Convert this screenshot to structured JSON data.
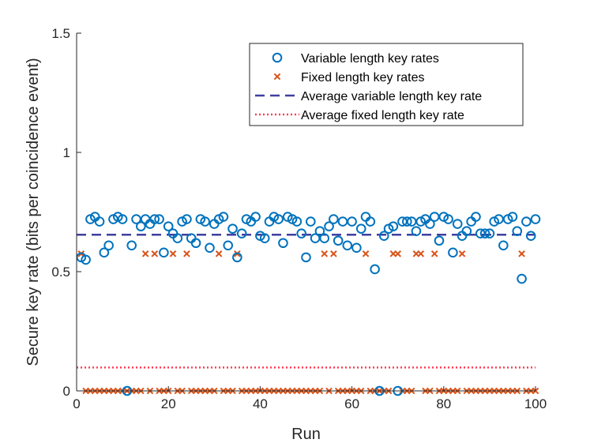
{
  "chart_data": {
    "type": "scatter",
    "xlabel": "Run",
    "ylabel": "Secure key rate (bits per coincidence event)",
    "xlim": [
      0,
      100
    ],
    "ylim": [
      0,
      1.5
    ],
    "xticks": [
      0,
      20,
      40,
      60,
      80,
      100
    ],
    "yticks": [
      0,
      0.5,
      1,
      1.5
    ],
    "ytick_labels": [
      "0",
      "0.5",
      "1",
      "1.5"
    ],
    "grid": false,
    "legend_position": "top-right",
    "series": [
      {
        "name": "Variable length key rates",
        "marker": "circle",
        "color": "#0072BD",
        "x": [
          1,
          2,
          3,
          4,
          5,
          6,
          7,
          8,
          9,
          10,
          11,
          12,
          13,
          14,
          15,
          16,
          17,
          18,
          19,
          20,
          21,
          22,
          23,
          24,
          25,
          26,
          27,
          28,
          29,
          30,
          31,
          32,
          33,
          34,
          35,
          36,
          37,
          38,
          39,
          40,
          41,
          42,
          43,
          44,
          45,
          46,
          47,
          48,
          49,
          50,
          51,
          52,
          53,
          54,
          55,
          56,
          57,
          58,
          59,
          60,
          61,
          62,
          63,
          64,
          65,
          66,
          67,
          68,
          69,
          70,
          71,
          72,
          73,
          74,
          75,
          76,
          77,
          78,
          79,
          80,
          81,
          82,
          83,
          84,
          85,
          86,
          87,
          88,
          89,
          90,
          91,
          92,
          93,
          94,
          95,
          96,
          97,
          98,
          99,
          100
        ],
        "y": [
          0.56,
          0.55,
          0.72,
          0.73,
          0.71,
          0.58,
          0.61,
          0.72,
          0.73,
          0.72,
          0.0,
          0.61,
          0.72,
          0.69,
          0.72,
          0.7,
          0.72,
          0.72,
          0.58,
          0.69,
          0.66,
          0.64,
          0.71,
          0.72,
          0.64,
          0.62,
          0.72,
          0.71,
          0.6,
          0.7,
          0.72,
          0.73,
          0.61,
          0.68,
          0.56,
          0.66,
          0.72,
          0.71,
          0.73,
          0.65,
          0.64,
          0.71,
          0.73,
          0.72,
          0.62,
          0.73,
          0.72,
          0.71,
          0.66,
          0.56,
          0.71,
          0.64,
          0.67,
          0.64,
          0.69,
          0.72,
          0.63,
          0.71,
          0.61,
          0.71,
          0.6,
          0.68,
          0.73,
          0.71,
          0.51,
          0.0,
          0.65,
          0.68,
          0.69,
          0.0,
          0.71,
          0.71,
          0.71,
          0.67,
          0.71,
          0.72,
          0.7,
          0.73,
          0.63,
          0.73,
          0.72,
          0.58,
          0.7,
          0.65,
          0.67,
          0.71,
          0.73,
          0.66,
          0.66,
          0.66,
          0.71,
          0.72,
          0.61,
          0.72,
          0.73,
          0.67,
          0.47,
          0.71,
          0.65,
          0.72
        ]
      },
      {
        "name": "Fixed length key rates",
        "marker": "x",
        "color": "#D95319",
        "x": [
          1,
          2,
          3,
          4,
          5,
          6,
          7,
          8,
          9,
          10,
          11,
          12,
          13,
          14,
          15,
          16,
          17,
          18,
          19,
          20,
          21,
          22,
          23,
          24,
          25,
          26,
          27,
          28,
          29,
          30,
          31,
          32,
          33,
          34,
          35,
          36,
          37,
          38,
          39,
          40,
          41,
          42,
          43,
          44,
          45,
          46,
          47,
          48,
          49,
          50,
          51,
          52,
          53,
          54,
          55,
          56,
          57,
          58,
          59,
          60,
          61,
          62,
          63,
          64,
          65,
          66,
          67,
          68,
          69,
          70,
          71,
          72,
          73,
          74,
          75,
          76,
          77,
          78,
          79,
          80,
          81,
          82,
          83,
          84,
          85,
          86,
          87,
          88,
          89,
          90,
          91,
          92,
          93,
          94,
          95,
          96,
          97,
          98,
          99,
          100
        ],
        "y": [
          0.575,
          0,
          0,
          0,
          0,
          0,
          0,
          0,
          0,
          0,
          0,
          0,
          0,
          0,
          0.575,
          0,
          0.575,
          0,
          0,
          0,
          0.575,
          0,
          0,
          0.575,
          0,
          0,
          0,
          0,
          0,
          0,
          0.575,
          0,
          0,
          0,
          0.575,
          0,
          0,
          0,
          0,
          0,
          0,
          0,
          0,
          0,
          0,
          0,
          0,
          0,
          0,
          0,
          0,
          0,
          0,
          0.575,
          0,
          0.575,
          0,
          0,
          0,
          0,
          0,
          0,
          0.575,
          0,
          0,
          0,
          0,
          0,
          0.575,
          0.575,
          0,
          0,
          0,
          0.575,
          0.575,
          0,
          0,
          0.575,
          0,
          0,
          0,
          0,
          0,
          0.575,
          0,
          0,
          0,
          0,
          0,
          0,
          0,
          0,
          0,
          0,
          0,
          0,
          0.575,
          0,
          0,
          0
        ]
      },
      {
        "name": "Average variable length key rate",
        "line_style": "dashed",
        "color": "#3F3FA0",
        "y": 0.655
      },
      {
        "name": "Average fixed length key rate",
        "line_style": "dotted",
        "color": "#FF3D55",
        "y": 0.098
      }
    ]
  }
}
